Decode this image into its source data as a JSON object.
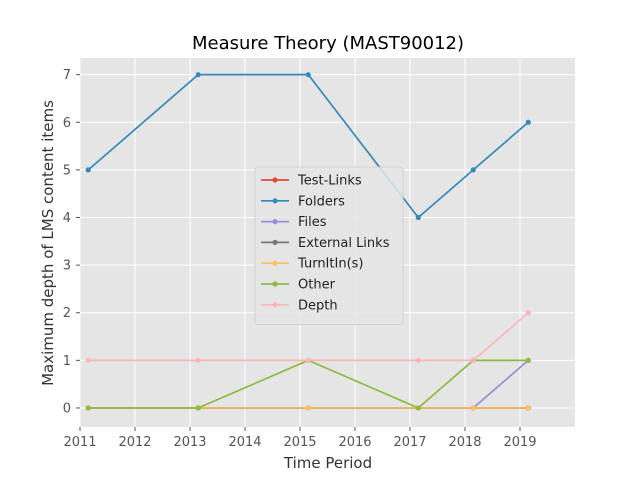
{
  "chart_data": {
    "type": "line",
    "title": "Measure Theory (MAST90012)",
    "xlabel": "Time Period",
    "ylabel": "Maximum depth of LMS content items",
    "xlim": [
      2011,
      2020
    ],
    "ylim": [
      -0.4,
      7.35
    ],
    "x_ticks": [
      2011,
      2012,
      2013,
      2014,
      2015,
      2016,
      2017,
      2018,
      2019
    ],
    "y_ticks": [
      0,
      1,
      2,
      3,
      4,
      5,
      6,
      7
    ],
    "grid": true,
    "legend_position": "center",
    "x": [
      2011.15,
      2013.15,
      2015.15,
      2017.15,
      2018.15,
      2019.15
    ],
    "series": [
      {
        "name": "Test-Links",
        "color": "#E24A33",
        "values": [
          0,
          0,
          0,
          0,
          0,
          0
        ]
      },
      {
        "name": "Folders",
        "color": "#348ABD",
        "values": [
          5,
          7,
          7,
          4,
          5,
          6
        ]
      },
      {
        "name": "Files",
        "color": "#988ED5",
        "values": [
          0,
          0,
          0,
          0,
          0,
          1
        ]
      },
      {
        "name": "External Links",
        "color": "#777777",
        "values": [
          0,
          0,
          0,
          0,
          0,
          0
        ]
      },
      {
        "name": "TurnItIn(s)",
        "color": "#FBC15E",
        "values": [
          0,
          0,
          0,
          0,
          0,
          0
        ]
      },
      {
        "name": "Other",
        "color": "#8EBA42",
        "values": [
          0,
          0,
          1,
          0,
          1,
          1
        ]
      },
      {
        "name": "Depth",
        "color": "#FFB5B8",
        "values": [
          1,
          1,
          1,
          1,
          1,
          2
        ]
      }
    ]
  }
}
